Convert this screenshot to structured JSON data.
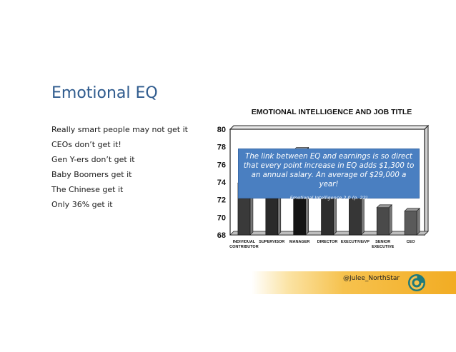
{
  "slide": {
    "title": "Emotional EQ",
    "bullets": [
      "Really smart people may not get it",
      "CEOs don’t get it!",
      "Gen Y-ers don’t get it",
      "Baby Boomers get it",
      "The Chinese get it",
      "Only 36% get it"
    ]
  },
  "chart_data": {
    "type": "bar",
    "title": "EMOTIONAL INTELLIGENCE AND JOB TITLE",
    "categories": [
      [
        "INDIVIDUAL",
        "CONTRIBUTOR"
      ],
      [
        "SUPERVISOR"
      ],
      [
        "MANAGER"
      ],
      [
        "DIRECTOR"
      ],
      [
        "EXECUTIVE/VP"
      ],
      [
        "SENIOR",
        "EXECUTIVE"
      ],
      [
        "CEO"
      ]
    ],
    "values": [
      73.9,
      75.3,
      77.6,
      76.5,
      74.2,
      71.1,
      70.7
    ],
    "ylim": [
      68,
      80
    ],
    "yticks": [
      68,
      70,
      72,
      74,
      76,
      78,
      80
    ],
    "colors": {
      "bar_front": [
        "#3a3a3a",
        "#2a2a2a",
        "#141414",
        "#2e2e2e",
        "#363636",
        "#4a4a4a",
        "#5a5a5a"
      ],
      "bar_side": "#777777",
      "bar_top": "#999999"
    }
  },
  "callout": {
    "quote": "The link between EQ and earnings is so direct that every point increase in EQ adds $1,300 to an annual salary. An average of $29,000 a year!",
    "source": "Emotional Intelligence 2.0 (p. 22)",
    "color": "#4a7fc1"
  },
  "footer": {
    "handle": "@Julee_NorthStar",
    "logo_icon": "north-star-swirl-icon"
  }
}
